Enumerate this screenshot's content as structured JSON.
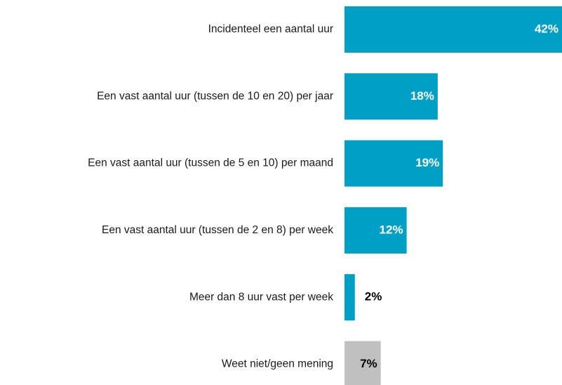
{
  "chart_data": {
    "type": "bar",
    "orientation": "horizontal",
    "categories": [
      "Incidenteel een aantal uur",
      "Een vast aantal uur (tussen de 10 en 20) per jaar",
      "Een vast aantal uur (tussen de 5 en 10) per maand",
      "Een vast aantal uur (tussen de 2 en 8) per week",
      "Meer dan 8 uur vast per week",
      "Weet niet/geen mening"
    ],
    "values": [
      42,
      18,
      19,
      12,
      2,
      7
    ],
    "value_labels": [
      "42%",
      "18%",
      "19%",
      "12%",
      "2%",
      "7%"
    ],
    "colors": [
      "#00a0c6",
      "#00a0c6",
      "#00a0c6",
      "#00a0c6",
      "#00a0c6",
      "#c0c0c0"
    ]
  }
}
